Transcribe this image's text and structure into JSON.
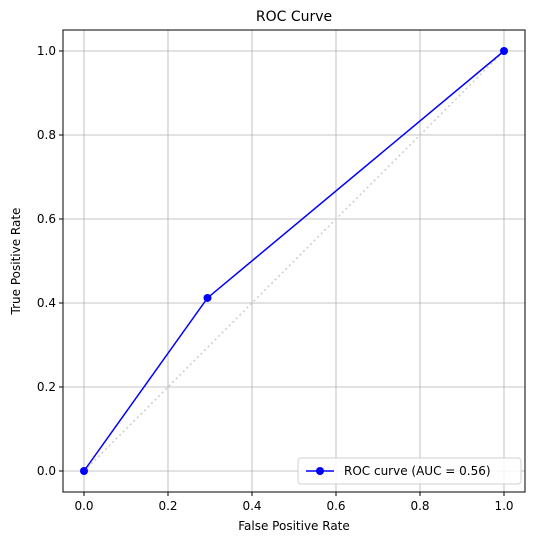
{
  "chart_data": {
    "type": "line",
    "title": "ROC Curve",
    "xlabel": "False Positive Rate",
    "ylabel": "True Positive Rate",
    "xlim": [
      -0.05,
      1.05
    ],
    "ylim": [
      -0.05,
      1.05
    ],
    "xticks": [
      0.0,
      0.2,
      0.4,
      0.6,
      0.8,
      1.0
    ],
    "yticks": [
      0.0,
      0.2,
      0.4,
      0.6,
      0.8,
      1.0
    ],
    "grid": true,
    "legend_placement": "lower-right",
    "series": [
      {
        "name": "ROC curve (AUC = 0.56)",
        "color": "#0000ff",
        "marker": "circle",
        "points": [
          {
            "x": 0.0,
            "y": 0.0
          },
          {
            "x": 0.294,
            "y": 0.412
          },
          {
            "x": 1.0,
            "y": 1.0
          }
        ]
      }
    ],
    "reference_line": {
      "style": "dotted",
      "color": "#cccccc",
      "points": [
        {
          "x": 0.0,
          "y": 0.0
        },
        {
          "x": 1.0,
          "y": 1.0
        }
      ]
    }
  }
}
